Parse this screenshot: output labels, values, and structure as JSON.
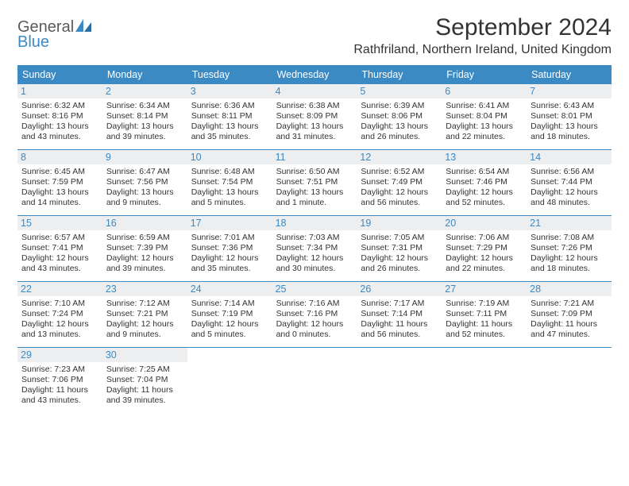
{
  "brand": {
    "name1": "General",
    "name2": "Blue"
  },
  "title": "September 2024",
  "location": "Rathfriland, Northern Ireland, United Kingdom",
  "colors": {
    "header_bg": "#3b8ac4",
    "date_bg": "#eceeef",
    "date_color": "#3b8ac4",
    "text": "#333333",
    "rule": "#3b8ac4"
  },
  "dayNames": [
    "Sunday",
    "Monday",
    "Tuesday",
    "Wednesday",
    "Thursday",
    "Friday",
    "Saturday"
  ],
  "days": [
    {
      "n": "1",
      "sr": "Sunrise: 6:32 AM",
      "ss": "Sunset: 8:16 PM",
      "dl": "Daylight: 13 hours and 43 minutes."
    },
    {
      "n": "2",
      "sr": "Sunrise: 6:34 AM",
      "ss": "Sunset: 8:14 PM",
      "dl": "Daylight: 13 hours and 39 minutes."
    },
    {
      "n": "3",
      "sr": "Sunrise: 6:36 AM",
      "ss": "Sunset: 8:11 PM",
      "dl": "Daylight: 13 hours and 35 minutes."
    },
    {
      "n": "4",
      "sr": "Sunrise: 6:38 AM",
      "ss": "Sunset: 8:09 PM",
      "dl": "Daylight: 13 hours and 31 minutes."
    },
    {
      "n": "5",
      "sr": "Sunrise: 6:39 AM",
      "ss": "Sunset: 8:06 PM",
      "dl": "Daylight: 13 hours and 26 minutes."
    },
    {
      "n": "6",
      "sr": "Sunrise: 6:41 AM",
      "ss": "Sunset: 8:04 PM",
      "dl": "Daylight: 13 hours and 22 minutes."
    },
    {
      "n": "7",
      "sr": "Sunrise: 6:43 AM",
      "ss": "Sunset: 8:01 PM",
      "dl": "Daylight: 13 hours and 18 minutes."
    },
    {
      "n": "8",
      "sr": "Sunrise: 6:45 AM",
      "ss": "Sunset: 7:59 PM",
      "dl": "Daylight: 13 hours and 14 minutes."
    },
    {
      "n": "9",
      "sr": "Sunrise: 6:47 AM",
      "ss": "Sunset: 7:56 PM",
      "dl": "Daylight: 13 hours and 9 minutes."
    },
    {
      "n": "10",
      "sr": "Sunrise: 6:48 AM",
      "ss": "Sunset: 7:54 PM",
      "dl": "Daylight: 13 hours and 5 minutes."
    },
    {
      "n": "11",
      "sr": "Sunrise: 6:50 AM",
      "ss": "Sunset: 7:51 PM",
      "dl": "Daylight: 13 hours and 1 minute."
    },
    {
      "n": "12",
      "sr": "Sunrise: 6:52 AM",
      "ss": "Sunset: 7:49 PM",
      "dl": "Daylight: 12 hours and 56 minutes."
    },
    {
      "n": "13",
      "sr": "Sunrise: 6:54 AM",
      "ss": "Sunset: 7:46 PM",
      "dl": "Daylight: 12 hours and 52 minutes."
    },
    {
      "n": "14",
      "sr": "Sunrise: 6:56 AM",
      "ss": "Sunset: 7:44 PM",
      "dl": "Daylight: 12 hours and 48 minutes."
    },
    {
      "n": "15",
      "sr": "Sunrise: 6:57 AM",
      "ss": "Sunset: 7:41 PM",
      "dl": "Daylight: 12 hours and 43 minutes."
    },
    {
      "n": "16",
      "sr": "Sunrise: 6:59 AM",
      "ss": "Sunset: 7:39 PM",
      "dl": "Daylight: 12 hours and 39 minutes."
    },
    {
      "n": "17",
      "sr": "Sunrise: 7:01 AM",
      "ss": "Sunset: 7:36 PM",
      "dl": "Daylight: 12 hours and 35 minutes."
    },
    {
      "n": "18",
      "sr": "Sunrise: 7:03 AM",
      "ss": "Sunset: 7:34 PM",
      "dl": "Daylight: 12 hours and 30 minutes."
    },
    {
      "n": "19",
      "sr": "Sunrise: 7:05 AM",
      "ss": "Sunset: 7:31 PM",
      "dl": "Daylight: 12 hours and 26 minutes."
    },
    {
      "n": "20",
      "sr": "Sunrise: 7:06 AM",
      "ss": "Sunset: 7:29 PM",
      "dl": "Daylight: 12 hours and 22 minutes."
    },
    {
      "n": "21",
      "sr": "Sunrise: 7:08 AM",
      "ss": "Sunset: 7:26 PM",
      "dl": "Daylight: 12 hours and 18 minutes."
    },
    {
      "n": "22",
      "sr": "Sunrise: 7:10 AM",
      "ss": "Sunset: 7:24 PM",
      "dl": "Daylight: 12 hours and 13 minutes."
    },
    {
      "n": "23",
      "sr": "Sunrise: 7:12 AM",
      "ss": "Sunset: 7:21 PM",
      "dl": "Daylight: 12 hours and 9 minutes."
    },
    {
      "n": "24",
      "sr": "Sunrise: 7:14 AM",
      "ss": "Sunset: 7:19 PM",
      "dl": "Daylight: 12 hours and 5 minutes."
    },
    {
      "n": "25",
      "sr": "Sunrise: 7:16 AM",
      "ss": "Sunset: 7:16 PM",
      "dl": "Daylight: 12 hours and 0 minutes."
    },
    {
      "n": "26",
      "sr": "Sunrise: 7:17 AM",
      "ss": "Sunset: 7:14 PM",
      "dl": "Daylight: 11 hours and 56 minutes."
    },
    {
      "n": "27",
      "sr": "Sunrise: 7:19 AM",
      "ss": "Sunset: 7:11 PM",
      "dl": "Daylight: 11 hours and 52 minutes."
    },
    {
      "n": "28",
      "sr": "Sunrise: 7:21 AM",
      "ss": "Sunset: 7:09 PM",
      "dl": "Daylight: 11 hours and 47 minutes."
    },
    {
      "n": "29",
      "sr": "Sunrise: 7:23 AM",
      "ss": "Sunset: 7:06 PM",
      "dl": "Daylight: 11 hours and 43 minutes."
    },
    {
      "n": "30",
      "sr": "Sunrise: 7:25 AM",
      "ss": "Sunset: 7:04 PM",
      "dl": "Daylight: 11 hours and 39 minutes."
    }
  ]
}
